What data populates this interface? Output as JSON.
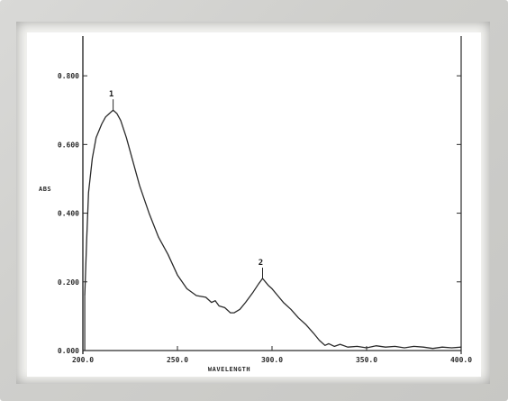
{
  "chart_data": {
    "type": "line",
    "title": "",
    "xlabel": "WAVELENGTH",
    "ylabel": "ABS",
    "xlim": [
      200,
      400
    ],
    "ylim": [
      0,
      0.9
    ],
    "x_ticks": [
      {
        "value": 200,
        "label": "200.0"
      },
      {
        "value": 250,
        "label": "250.0"
      },
      {
        "value": 300,
        "label": "300.0"
      },
      {
        "value": 350,
        "label": "350.0"
      },
      {
        "value": 400,
        "label": "400.0"
      }
    ],
    "y_ticks": [
      {
        "value": 0.0,
        "label": "0.000"
      },
      {
        "value": 0.2,
        "label": "0.200"
      },
      {
        "value": 0.4,
        "label": "0.400"
      },
      {
        "value": 0.6,
        "label": "0.600"
      },
      {
        "value": 0.8,
        "label": "0.800"
      }
    ],
    "grid": false,
    "series": [
      {
        "x": [
          201,
          202,
          203,
          205,
          207,
          210,
          212,
          214,
          216,
          218,
          220,
          223,
          226,
          230,
          235,
          240,
          245,
          250,
          255,
          260,
          265,
          268,
          270,
          272,
          275,
          278,
          280,
          283,
          286,
          290,
          293,
          295,
          298,
          300,
          303,
          306,
          310,
          314,
          318,
          322,
          325,
          328,
          330,
          333,
          336,
          340,
          345,
          350,
          355,
          360,
          365,
          370,
          375,
          380,
          385,
          390,
          395,
          400
        ],
        "y": [
          0.16,
          0.32,
          0.46,
          0.56,
          0.62,
          0.66,
          0.68,
          0.69,
          0.7,
          0.69,
          0.67,
          0.62,
          0.56,
          0.48,
          0.4,
          0.33,
          0.28,
          0.22,
          0.18,
          0.16,
          0.155,
          0.14,
          0.145,
          0.13,
          0.125,
          0.11,
          0.11,
          0.12,
          0.14,
          0.17,
          0.195,
          0.21,
          0.19,
          0.18,
          0.16,
          0.14,
          0.12,
          0.095,
          0.075,
          0.05,
          0.03,
          0.015,
          0.02,
          0.012,
          0.018,
          0.01,
          0.012,
          0.008,
          0.014,
          0.01,
          0.012,
          0.008,
          0.012,
          0.01,
          0.006,
          0.01,
          0.008,
          0.01
        ]
      }
    ],
    "annotations": [
      {
        "label": "1",
        "x": 216,
        "y": 0.7
      },
      {
        "label": "2",
        "x": 295,
        "y": 0.21
      }
    ]
  }
}
